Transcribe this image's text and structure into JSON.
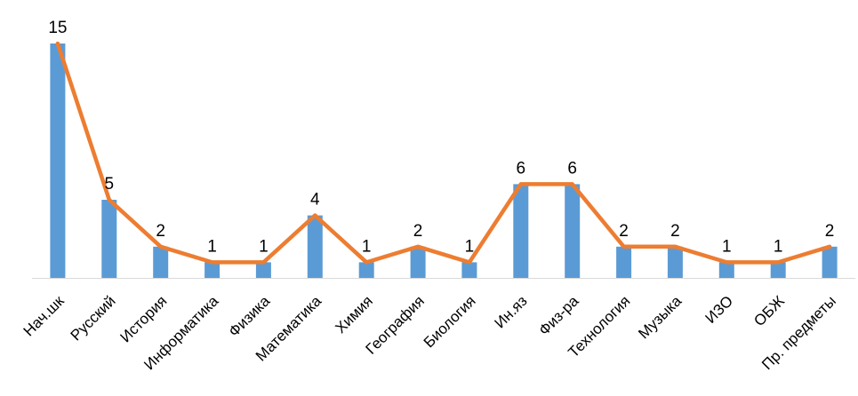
{
  "chart_data": {
    "type": "bar",
    "categories": [
      "Нач.шк",
      "Русский",
      "История",
      "Информатика",
      "Физика",
      "Математика",
      "Химия",
      "География",
      "Биология",
      "Ин.яз",
      "Физ-ра",
      "Технология",
      "Музыка",
      "ИЗО",
      "ОБЖ",
      "Пр. предметы"
    ],
    "series": [
      {
        "kind": "bar",
        "color": "#5B9BD5",
        "values": [
          15,
          5,
          2,
          1,
          1,
          4,
          1,
          2,
          1,
          6,
          6,
          2,
          2,
          1,
          1,
          2
        ]
      },
      {
        "kind": "line",
        "color": "#ED7D31",
        "values": [
          15,
          5,
          2,
          1,
          1,
          4,
          1,
          2,
          1,
          6,
          6,
          2,
          2,
          1,
          1,
          2
        ]
      }
    ],
    "data_labels": [
      "15",
      "5",
      "2",
      "1",
      "1",
      "4",
      "1",
      "2",
      "1",
      "6",
      "6",
      "2",
      "2",
      "1",
      "1",
      "2"
    ],
    "ylim": [
      0,
      15
    ],
    "grid": false,
    "legend": "none",
    "axis_color": "#D9D9D9",
    "label_color": "#000000",
    "category_label_rotation": -45
  }
}
